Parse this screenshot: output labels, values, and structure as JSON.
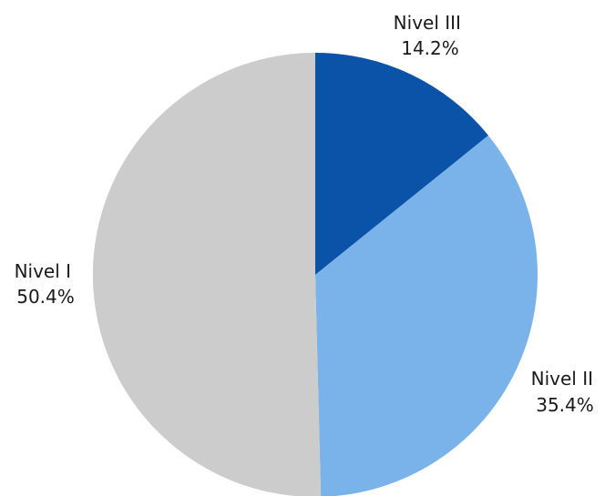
{
  "chart_data": {
    "type": "pie",
    "title": "",
    "start_angle_deg": 0,
    "direction": "clockwise",
    "slices": [
      {
        "label": "Nivel III",
        "value": 14.2,
        "value_text": "14.2%",
        "color": "#0b53a8"
      },
      {
        "label": "Nivel II",
        "value": 35.4,
        "value_text": "35.4%",
        "color": "#7ab3e9"
      },
      {
        "label": "Nivel I",
        "value": 50.4,
        "value_text": "50.4%",
        "color": "#cccccc"
      }
    ]
  }
}
